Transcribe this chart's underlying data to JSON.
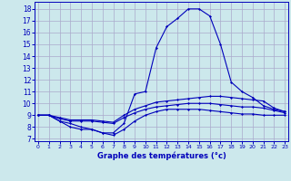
{
  "xlabel": "Graphe des températures (°c)",
  "bg_color": "#cce8ec",
  "grid_color": "#aaaacc",
  "line_color": "#0000bb",
  "x_ticks": [
    0,
    1,
    2,
    3,
    4,
    5,
    6,
    7,
    8,
    9,
    10,
    11,
    12,
    13,
    14,
    15,
    16,
    17,
    18,
    19,
    20,
    21,
    22,
    23
  ],
  "y_ticks": [
    7,
    8,
    9,
    10,
    11,
    12,
    13,
    14,
    15,
    16,
    17,
    18
  ],
  "ylim": [
    6.8,
    18.6
  ],
  "xlim": [
    -0.3,
    23.3
  ],
  "max_temps": [
    9.0,
    9.0,
    8.5,
    8.0,
    7.8,
    7.8,
    7.5,
    7.5,
    8.3,
    10.8,
    11.0,
    14.7,
    16.5,
    17.2,
    18.0,
    18.0,
    17.4,
    15.0,
    11.8,
    11.0,
    10.5,
    9.8,
    9.5,
    9.3
  ],
  "upper_flat": [
    9.0,
    9.0,
    8.8,
    8.6,
    8.6,
    8.6,
    8.5,
    8.4,
    9.0,
    9.5,
    9.8,
    10.1,
    10.2,
    10.3,
    10.4,
    10.5,
    10.6,
    10.6,
    10.5,
    10.4,
    10.3,
    10.2,
    9.6,
    9.3
  ],
  "mid_flat": [
    9.0,
    9.0,
    8.7,
    8.5,
    8.5,
    8.5,
    8.4,
    8.3,
    8.8,
    9.2,
    9.5,
    9.7,
    9.8,
    9.9,
    10.0,
    10.0,
    10.0,
    9.9,
    9.8,
    9.7,
    9.7,
    9.6,
    9.4,
    9.2
  ],
  "min_temps": [
    9.0,
    9.0,
    8.5,
    8.3,
    8.0,
    7.8,
    7.5,
    7.3,
    7.8,
    8.5,
    9.0,
    9.3,
    9.5,
    9.5,
    9.5,
    9.5,
    9.4,
    9.3,
    9.2,
    9.1,
    9.1,
    9.0,
    9.0,
    9.0
  ]
}
